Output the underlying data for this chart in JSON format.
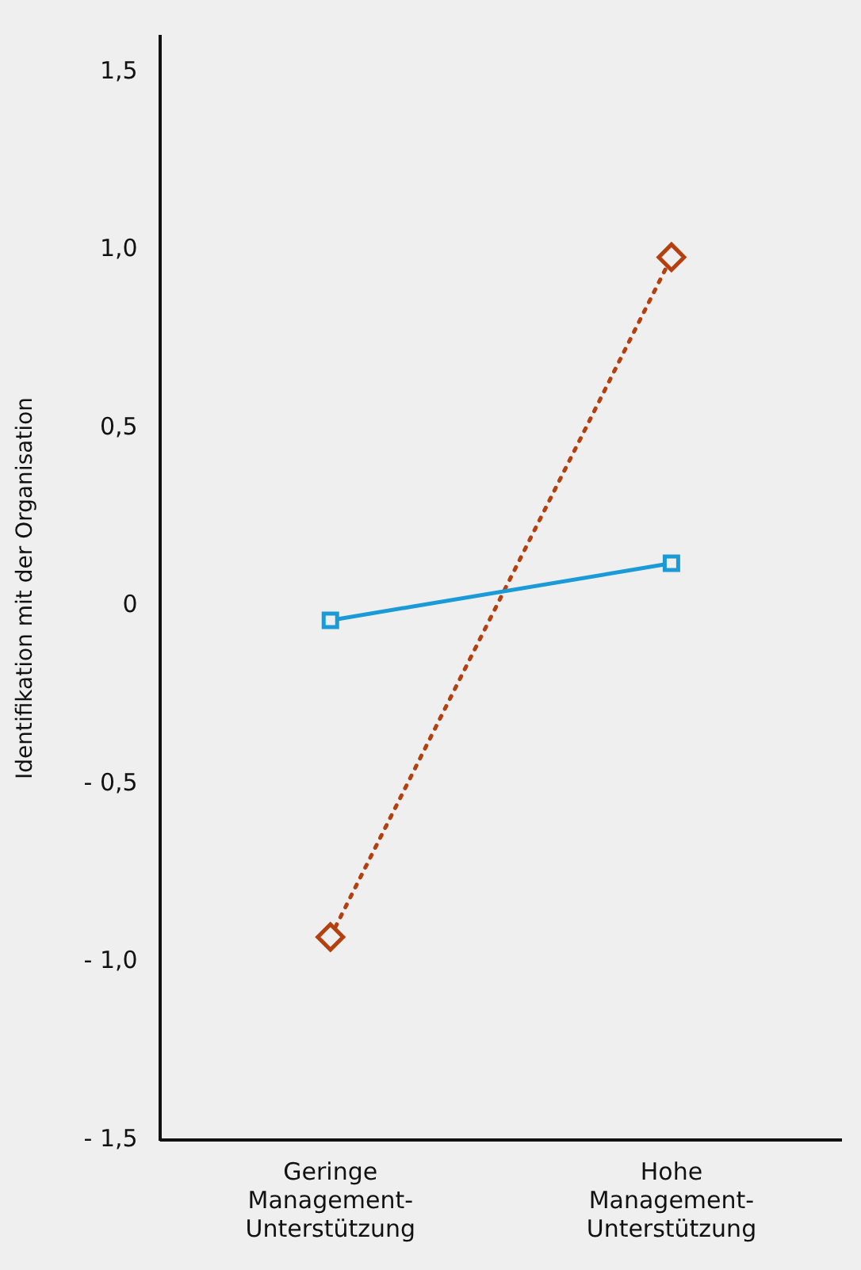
{
  "chart_data": {
    "type": "line",
    "ylabel": "Identifikation mit der Organisation",
    "categories": [
      "Geringe\nManagement-\nUnterstützung",
      "Hohe\nManagement-\nUnterstützung"
    ],
    "series": [
      {
        "color": "#1a9ad6",
        "values": [
          -0.04,
          0.12
        ],
        "marker": "square",
        "line_style": "solid"
      },
      {
        "color": "#b5400f",
        "values": [
          -0.93,
          0.98
        ],
        "marker": "diamond",
        "line_style": "dotted"
      }
    ],
    "ylim": [
      -1.5,
      1.6
    ],
    "yticks": [
      {
        "value": 1.5,
        "label": "1,5"
      },
      {
        "value": 1,
        "label": "1,0"
      },
      {
        "value": 0.5,
        "label": "0,5"
      },
      {
        "value": 0,
        "label": "0"
      },
      {
        "value": -0.5,
        "label": "- 0,5"
      },
      {
        "value": -1,
        "label": "- 1,0"
      },
      {
        "value": -1.5,
        "label": "- 1,5"
      }
    ],
    "grid": false,
    "legend": false
  }
}
